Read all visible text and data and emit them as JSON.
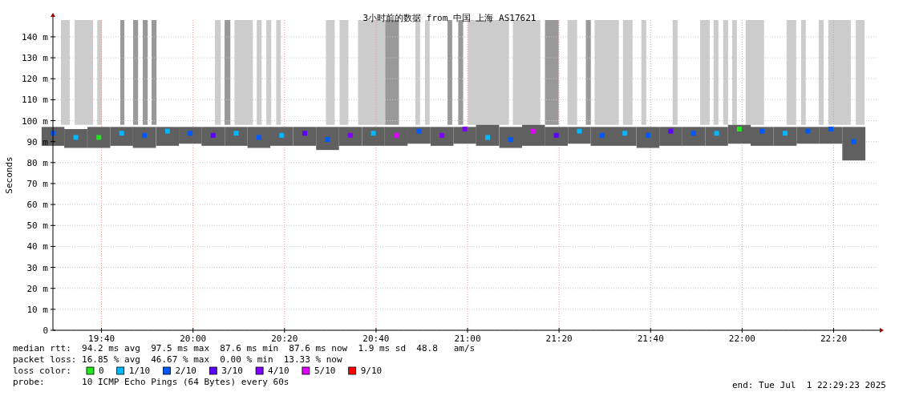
{
  "chart_data": {
    "type": "scatter",
    "marker": "square",
    "title": "3小时前的数据 from 中国 上海 AS17621",
    "ylabel": "Seconds",
    "legend_title": "loss color:",
    "legend": "bottom",
    "grid": true,
    "x": [
      19.49,
      19.573,
      19.657,
      19.74,
      19.823,
      19.907,
      19.99,
      20.073,
      20.157,
      20.24,
      20.323,
      20.407,
      20.49,
      20.573,
      20.657,
      20.74,
      20.823,
      20.907,
      20.99,
      21.073,
      21.157,
      21.24,
      21.323,
      21.407,
      21.49,
      21.573,
      21.657,
      21.74,
      21.823,
      21.907,
      21.99,
      22.073,
      22.157,
      22.24,
      22.323,
      22.407
    ],
    "xlim": [
      19.4897,
      22.4897
    ],
    "xticks": [
      {
        "value": 19.6667,
        "label": "19:40"
      },
      {
        "value": 20,
        "label": "20:00"
      },
      {
        "value": 20.3333,
        "label": "20:20"
      },
      {
        "value": 20.6667,
        "label": "20:40"
      },
      {
        "value": 21,
        "label": "21:00"
      },
      {
        "value": 21.3333,
        "label": "21:20"
      },
      {
        "value": 21.6667,
        "label": "21:40"
      },
      {
        "value": 22,
        "label": "22:00"
      },
      {
        "value": 22.3333,
        "label": "22:20"
      }
    ],
    "ylim": [
      0,
      148
    ],
    "yticks": [
      {
        "value": 0,
        "label": "0"
      },
      {
        "value": 10,
        "label": "10 m"
      },
      {
        "value": 20,
        "label": "20 m"
      },
      {
        "value": 30,
        "label": "30 m"
      },
      {
        "value": 40,
        "label": "40 m"
      },
      {
        "value": 50,
        "label": "50 m"
      },
      {
        "value": 60,
        "label": "60 m"
      },
      {
        "value": 70,
        "label": "70 m"
      },
      {
        "value": 80,
        "label": "80 m"
      },
      {
        "value": 90,
        "label": "90 m"
      },
      {
        "value": 100,
        "label": "100 m"
      },
      {
        "value": 110,
        "label": "110 m"
      },
      {
        "value": 120,
        "label": "120 m"
      },
      {
        "value": 130,
        "label": "130 m"
      },
      {
        "value": 140,
        "label": "140 m"
      }
    ],
    "series": [
      {
        "type": "bar",
        "color": "#606060",
        "base": [
          88,
          87,
          87,
          88,
          87,
          88,
          89,
          88,
          88,
          87,
          88,
          88,
          86,
          88,
          88,
          88,
          89,
          88,
          89,
          88,
          87,
          88,
          88,
          89,
          88,
          88,
          87,
          88,
          88,
          88,
          89,
          88,
          88,
          89,
          89,
          81
        ],
        "values": [
          9,
          9,
          10,
          9,
          10,
          9,
          8,
          9,
          9,
          10,
          9,
          9,
          11,
          9,
          9,
          9,
          8,
          9,
          8,
          10,
          10,
          10,
          9,
          8,
          9,
          9,
          10,
          9,
          9,
          9,
          9,
          9,
          9,
          8,
          8,
          16
        ]
      },
      {
        "name": "0",
        "color": "#22e622",
        "values": [
          null,
          null,
          92,
          null,
          null,
          null,
          null,
          null,
          null,
          null,
          null,
          null,
          null,
          null,
          null,
          null,
          null,
          null,
          null,
          null,
          null,
          null,
          null,
          null,
          null,
          null,
          null,
          null,
          null,
          null,
          96,
          null,
          null,
          null,
          null,
          null
        ]
      },
      {
        "name": "1/10",
        "color": "#00b8ff",
        "values": [
          null,
          92,
          null,
          94,
          null,
          95,
          null,
          null,
          94,
          null,
          93,
          null,
          null,
          null,
          94,
          null,
          null,
          null,
          null,
          92,
          null,
          null,
          null,
          95,
          null,
          94,
          null,
          null,
          null,
          94,
          null,
          null,
          94,
          null,
          null,
          null
        ]
      },
      {
        "name": "2/10",
        "color": "#0059ff",
        "values": [
          94,
          null,
          null,
          null,
          93,
          null,
          94,
          null,
          null,
          92,
          null,
          null,
          91,
          null,
          null,
          null,
          95,
          null,
          null,
          null,
          91,
          null,
          null,
          null,
          93,
          null,
          93,
          null,
          94,
          null,
          null,
          95,
          null,
          95,
          96,
          90
        ]
      },
      {
        "name": "3/10",
        "color": "#5e00ff",
        "values": [
          null,
          null,
          null,
          null,
          null,
          null,
          null,
          93,
          null,
          null,
          null,
          94,
          null,
          null,
          null,
          null,
          null,
          null,
          null,
          null,
          null,
          null,
          93,
          null,
          null,
          null,
          null,
          95,
          null,
          null,
          null,
          null,
          null,
          null,
          null,
          null
        ]
      },
      {
        "name": "4/10",
        "color": "#7e00ff",
        "values": [
          null,
          null,
          null,
          null,
          null,
          null,
          null,
          null,
          null,
          null,
          null,
          null,
          null,
          93,
          null,
          null,
          null,
          93,
          96,
          null,
          null,
          null,
          null,
          null,
          null,
          null,
          null,
          null,
          null,
          null,
          null,
          null,
          null,
          null,
          null,
          null
        ]
      },
      {
        "name": "5/10",
        "color": "#dd00ff",
        "values": [
          null,
          null,
          null,
          null,
          null,
          null,
          null,
          null,
          null,
          null,
          null,
          null,
          null,
          null,
          null,
          93,
          null,
          null,
          null,
          null,
          null,
          95,
          null,
          null,
          null,
          null,
          null,
          null,
          null,
          null,
          null,
          null,
          null,
          null,
          null,
          null
        ]
      },
      {
        "name": "9/10",
        "color": "#ff0000",
        "values": [
          null,
          null,
          null,
          null,
          null,
          null,
          null,
          null,
          null,
          null,
          null,
          null,
          null,
          null,
          null,
          null,
          null,
          null,
          null,
          null,
          null,
          null,
          null,
          null,
          null,
          null,
          null,
          null,
          null,
          null,
          null,
          null,
          null,
          null,
          null,
          null
        ]
      }
    ],
    "bands": [
      {
        "axis": "x",
        "from": 19.519,
        "to": 19.551,
        "color": "#cccccc"
      },
      {
        "axis": "x",
        "from": 19.569,
        "to": 19.636,
        "color": "#cccccc"
      },
      {
        "axis": "x",
        "from": 19.651,
        "to": 19.668,
        "color": "#cccccc"
      },
      {
        "axis": "x",
        "from": 19.735,
        "to": 19.75,
        "color": "#999999"
      },
      {
        "axis": "x",
        "from": 19.782,
        "to": 19.8,
        "color": "#999999"
      },
      {
        "axis": "x",
        "from": 19.817,
        "to": 19.835,
        "color": "#999999"
      },
      {
        "axis": "x",
        "from": 19.849,
        "to": 19.867,
        "color": "#999999"
      },
      {
        "axis": "x",
        "from": 20.08,
        "to": 20.101,
        "color": "#cccccc"
      },
      {
        "axis": "x",
        "from": 20.115,
        "to": 20.136,
        "color": "#999999"
      },
      {
        "axis": "x",
        "from": 20.151,
        "to": 20.218,
        "color": "#cccccc"
      },
      {
        "axis": "x",
        "from": 20.232,
        "to": 20.25,
        "color": "#cccccc"
      },
      {
        "axis": "x",
        "from": 20.267,
        "to": 20.285,
        "color": "#cccccc"
      },
      {
        "axis": "x",
        "from": 20.303,
        "to": 20.32,
        "color": "#cccccc"
      },
      {
        "axis": "x",
        "from": 20.484,
        "to": 20.516,
        "color": "#cccccc"
      },
      {
        "axis": "x",
        "from": 20.534,
        "to": 20.566,
        "color": "#cccccc"
      },
      {
        "axis": "x",
        "from": 20.601,
        "to": 20.7,
        "color": "#cccccc"
      },
      {
        "axis": "x",
        "from": 20.7,
        "to": 20.75,
        "color": "#999999"
      },
      {
        "axis": "x",
        "from": 20.81,
        "to": 20.827,
        "color": "#cccccc"
      },
      {
        "axis": "x",
        "from": 20.845,
        "to": 20.862,
        "color": "#cccccc"
      },
      {
        "axis": "x",
        "from": 20.927,
        "to": 20.944,
        "color": "#999999"
      },
      {
        "axis": "x",
        "from": 20.966,
        "to": 20.984,
        "color": "#999999"
      },
      {
        "axis": "x",
        "from": 21.001,
        "to": 21.151,
        "color": "#cccccc"
      },
      {
        "axis": "x",
        "from": 21.165,
        "to": 21.265,
        "color": "#cccccc"
      },
      {
        "axis": "x",
        "from": 21.282,
        "to": 21.332,
        "color": "#999999"
      },
      {
        "axis": "x",
        "from": 21.364,
        "to": 21.399,
        "color": "#cccccc"
      },
      {
        "axis": "x",
        "from": 21.431,
        "to": 21.449,
        "color": "#999999"
      },
      {
        "axis": "x",
        "from": 21.463,
        "to": 21.551,
        "color": "#cccccc"
      },
      {
        "axis": "x",
        "from": 21.566,
        "to": 21.601,
        "color": "#cccccc"
      },
      {
        "axis": "x",
        "from": 21.633,
        "to": 21.651,
        "color": "#cccccc"
      },
      {
        "axis": "x",
        "from": 21.747,
        "to": 21.765,
        "color": "#cccccc"
      },
      {
        "axis": "x",
        "from": 21.847,
        "to": 21.882,
        "color": "#cccccc"
      },
      {
        "axis": "x",
        "from": 21.896,
        "to": 21.914,
        "color": "#cccccc"
      },
      {
        "axis": "x",
        "from": 21.931,
        "to": 21.949,
        "color": "#cccccc"
      },
      {
        "axis": "x",
        "from": 21.964,
        "to": 21.981,
        "color": "#cccccc"
      },
      {
        "axis": "x",
        "from": 22.013,
        "to": 22.08,
        "color": "#cccccc"
      },
      {
        "axis": "x",
        "from": 22.162,
        "to": 22.197,
        "color": "#cccccc"
      },
      {
        "axis": "x",
        "from": 22.215,
        "to": 22.232,
        "color": "#cccccc"
      },
      {
        "axis": "x",
        "from": 22.279,
        "to": 22.297,
        "color": "#cccccc"
      },
      {
        "axis": "x",
        "from": 22.314,
        "to": 22.396,
        "color": "#cccccc"
      },
      {
        "axis": "x",
        "from": 22.414,
        "to": 22.446,
        "color": "#cccccc"
      }
    ],
    "annotations": [
      "median rtt:  94.2 ms avg  97.5 ms max  87.6 ms min  87.6 ms now  1.9 ms sd  48.8   am/s",
      "packet loss: 16.85 % avg  46.67 % max  0.00 % min  13.33 % now",
      "probe:       10 ICMP Echo Pings (64 Bytes) every 60s",
      "end: Tue Jul  1 22:29:23 2025"
    ]
  }
}
